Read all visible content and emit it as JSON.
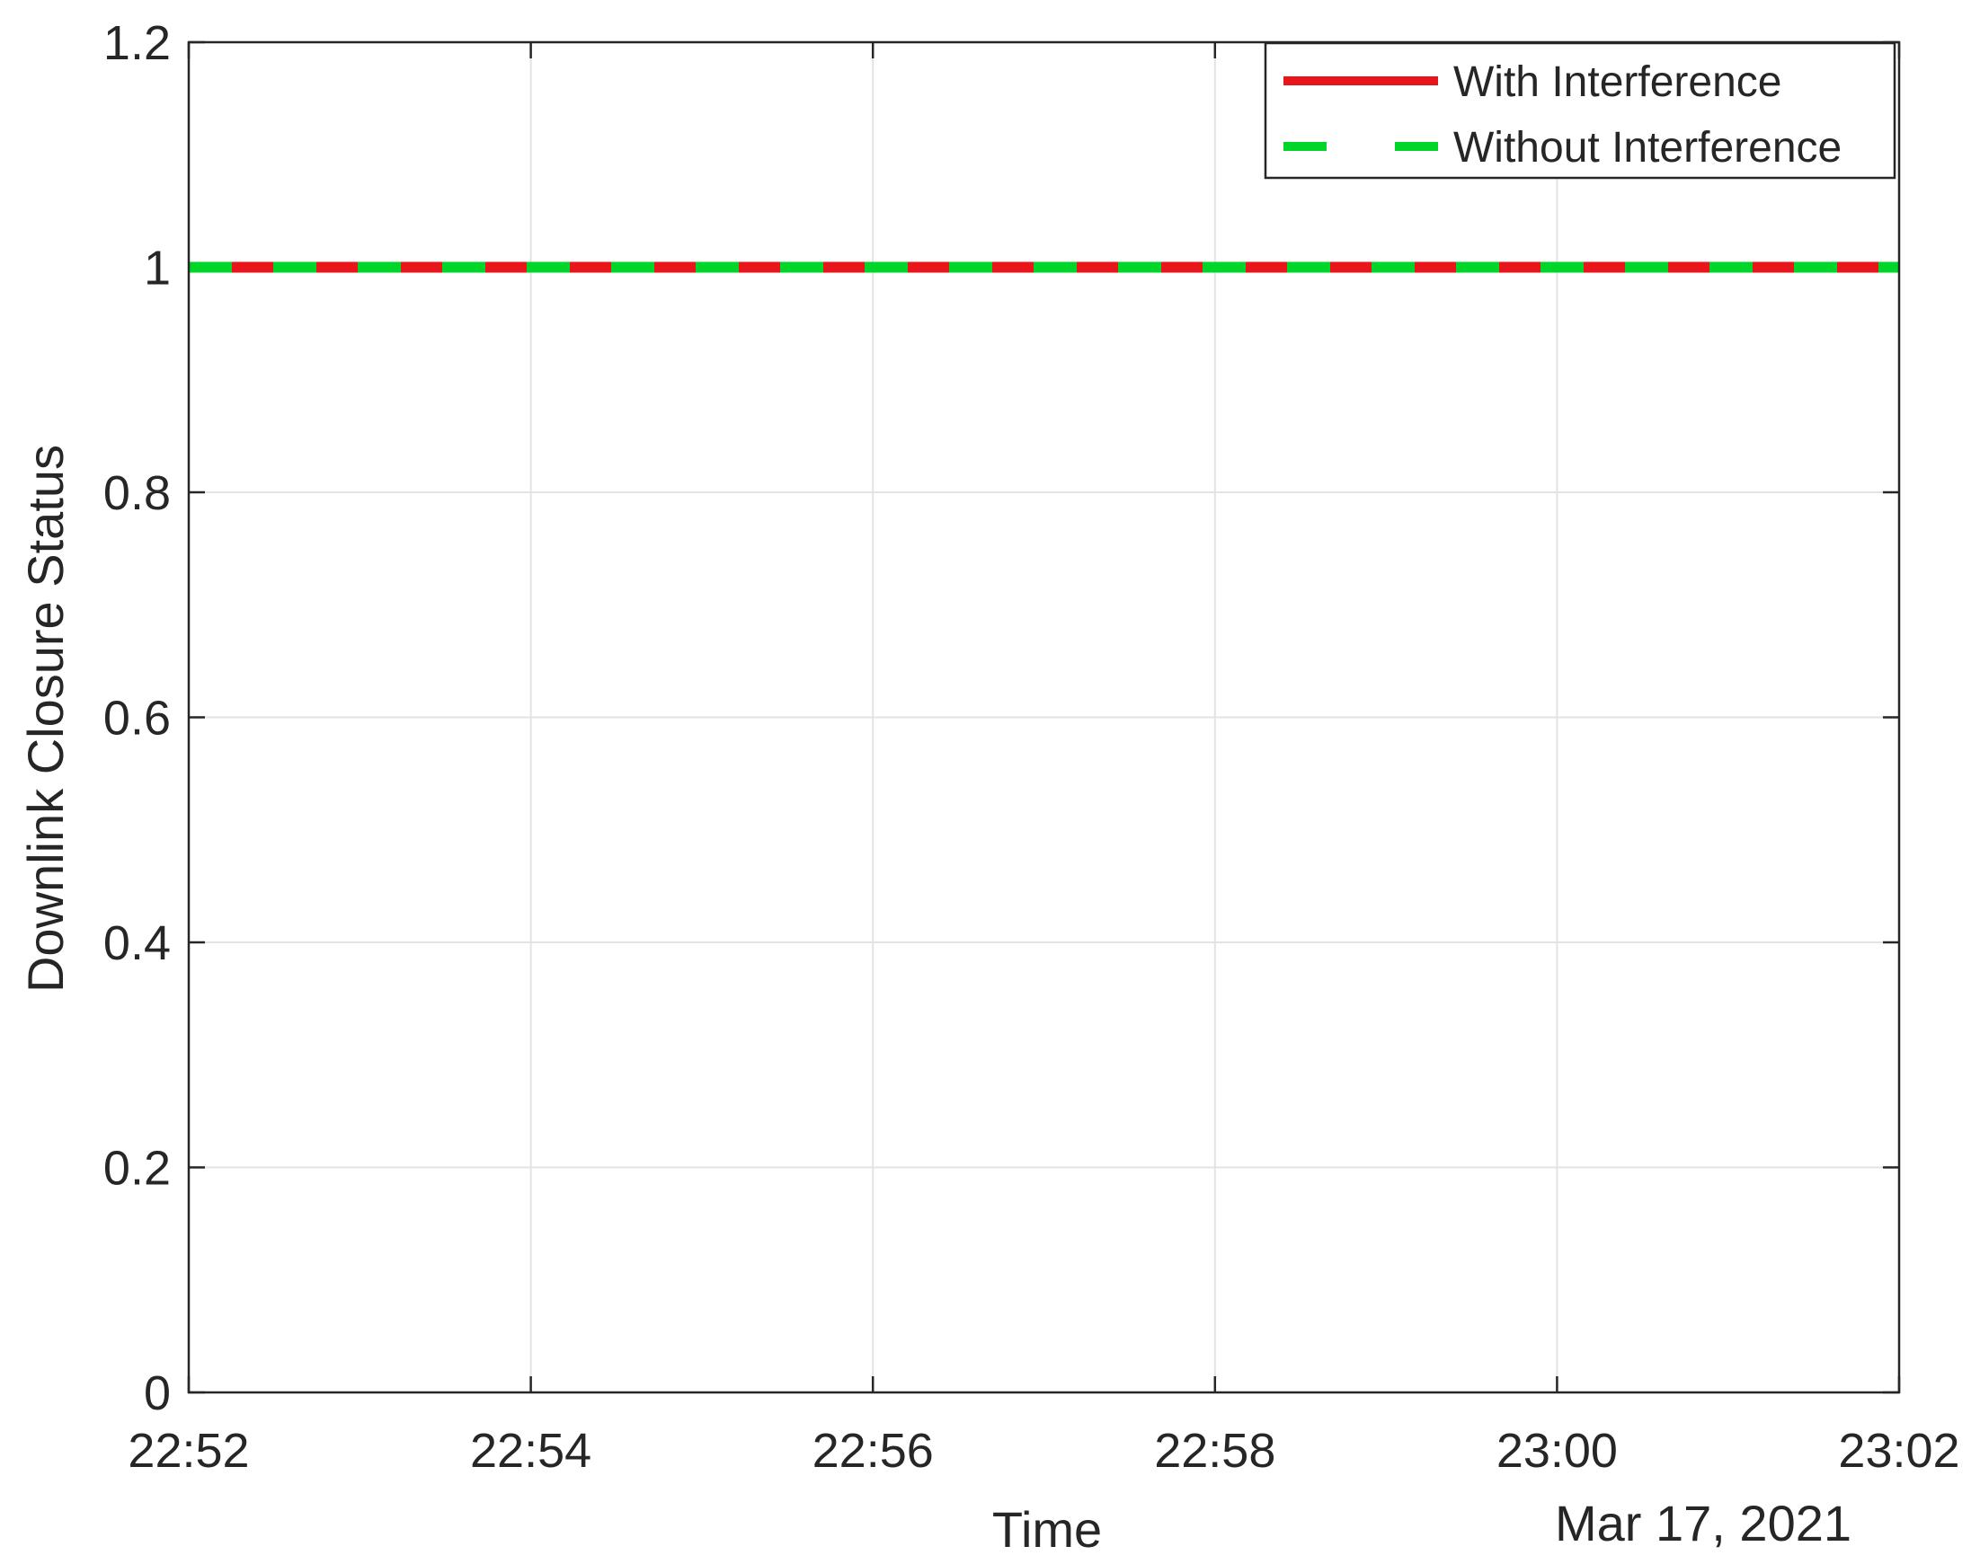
{
  "chart_data": {
    "type": "line",
    "title": "",
    "xlabel": "Time",
    "ylabel": "Downlink Closure Status",
    "date_label": "Mar 17, 2021",
    "x_ticks": [
      "22:52",
      "22:54",
      "22:56",
      "22:58",
      "23:00",
      "23:02"
    ],
    "y_ticks": [
      "0",
      "0.2",
      "0.4",
      "0.6",
      "0.8",
      "1",
      "1.2"
    ],
    "xlim": [
      "22:52",
      "23:02"
    ],
    "ylim": [
      0,
      1.2
    ],
    "grid": true,
    "legend_position": "top-right",
    "series": [
      {
        "name": "With Interference",
        "color": "#e8161b",
        "style": "solid",
        "x": [
          "22:52",
          "23:02"
        ],
        "values": [
          1,
          1
        ]
      },
      {
        "name": "Without Interference",
        "color": "#00d62a",
        "style": "dashed",
        "x": [
          "22:52",
          "23:02"
        ],
        "values": [
          1,
          1
        ]
      }
    ]
  }
}
